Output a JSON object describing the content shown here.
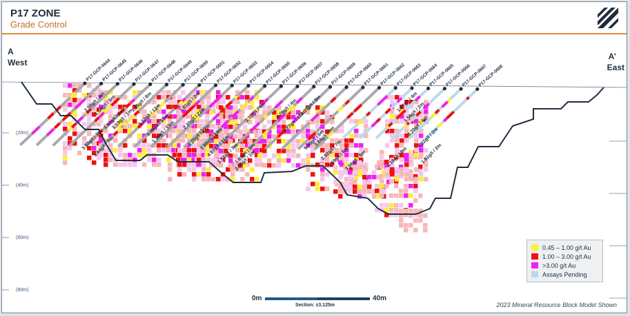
{
  "header": {
    "title": "P17 ZONE",
    "subtitle": "Grade Control"
  },
  "direction_labels": {
    "west_letter": "A",
    "west_word": "West",
    "east_letter": "A’",
    "east_word": "East"
  },
  "depth_labels": [
    "(20m)",
    "(40m)",
    "(60m)",
    "(80m)"
  ],
  "drillholes": [
    "P17-GCP-0644",
    "P17-GCP-0645",
    "P17-GCP-0646",
    "P17-GCP-0647",
    "P17-GCP-0648",
    "P17-GCP-0649",
    "P17-GCP-0650",
    "P17-GCP-0651",
    "P17-GCP-0652",
    "P17-GCP-0653",
    "P17-GCP-0654",
    "P17-GCP-0655",
    "P17-GCP-0656",
    "P17-GCP-0657",
    "P17-GCP-0658",
    "P17-GCP-0659",
    "P17-GCP-0660",
    "P17-GCP-0661",
    "P17-GCP-0662",
    "P17-GCP-0663",
    "P17-GCP-0664",
    "P17-GCP-0665",
    "P17-GCP-0666",
    "P17-GCP-0667",
    "P17-GCP-0668"
  ],
  "intercepts": [
    "2.58g/t / 4m",
    "1.54g/t / 5m",
    "1.22g/t / 3m",
    "1.19g/t / 1m",
    "3.52g/t / 1m",
    "1.44g/t / 7m",
    "1.25g/t / 8m",
    "3.22g/t / 13m",
    "3.39g/t / 17m",
    "1.36g/t / 13m",
    "1.81g/t / 2m",
    "2.20g/t / 22m",
    "3.29g/t / 22m",
    "1.66g/t / 14m",
    "4.57g/t / 11m",
    "1.51g/t / 7m",
    "1.61g/t / 5m",
    "2.55g/t / 1m",
    "1.70g/t / 4m",
    "1.76g/t / 4m",
    "1.77g/t / 15m",
    "1.35g/t / 9m",
    "5.48g/t / 5m",
    "3.84g/t / 8m",
    "2.92g/t / 7m",
    "1.59g/t / 6m",
    "3.98g/t / 5m",
    "1.67g/t / 4m",
    "1.56g/t / 2m",
    "3.20g/t / 4m",
    "1.22g/t / 2m",
    "3.16g/t / 8m",
    "1.81g/t / 2m"
  ],
  "legend": [
    {
      "label": "0.45 – 1.00 g/t Au",
      "color": "#ffee33"
    },
    {
      "label": "1.00 – 3.00 g/t Au",
      "color": "#ee1111"
    },
    {
      "label": ">3.00 g/t Au",
      "color": "#ee22ee"
    },
    {
      "label": "Assays Pending",
      "color": "#bcd8ec"
    }
  ],
  "scale": {
    "start": "0m",
    "end": "40m",
    "note": "Section: ±3.125m"
  },
  "footnote": "2023 Mineral Resource Block Model Shown",
  "colors": {
    "pit_outline": "#1f2d3d",
    "block_low": "#f5b8b8",
    "block_pink": "#f6c6f0",
    "hole_trace": "#a9a9a9",
    "pending_trace": "#bcd8ec",
    "accent": "#d98b3c"
  }
}
